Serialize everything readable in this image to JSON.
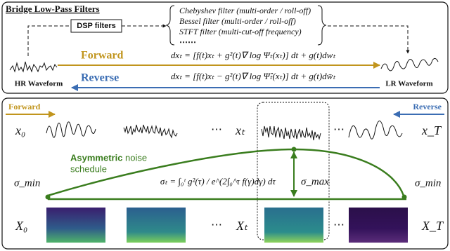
{
  "top_panel": {
    "title": "Bridge Low-Pass Filters",
    "dsp_box": "DSP filters",
    "filters": [
      "Chebyshev filter (multi-order / roll-off)",
      "Bessel filter (multi-order / roll-off)",
      "STFT filter (multi-cut-off frequency)",
      "⋯⋯"
    ],
    "hr_label": "HR Waveform",
    "lr_label": "LR Waveform",
    "forward": "Forward",
    "reverse": "Reverse",
    "forward_eq": "dxₜ = [f(t)xₜ + g²(t)∇ log Ψₜ(xₜ)] dt + g(t)dwₜ",
    "reverse_eq": "dxₜ = [f(t)xₜ − g²(t)∇ log Ψ̂ₜ(xₜ)] dt + g(t)dw̄ₜ"
  },
  "bottom_panel": {
    "forward": "Forward",
    "reverse": "Reverse",
    "waveform_labels": [
      "x₀",
      "xₜ",
      "x_T"
    ],
    "ellipsis": "⋯",
    "schedule_bold": "Asymmetric",
    "schedule_rest": "noise",
    "schedule_line2": "schedule",
    "sigma_min": "σ_min",
    "sigma_max": "σ_max",
    "sigma_eq": "σₜ = ∫₀ᵗ g²(τ) / e^(2∫₀^τ f(γ)dγ) dτ",
    "spectrogram_labels": [
      "X₀",
      "Xₜ",
      "X_T"
    ]
  }
}
